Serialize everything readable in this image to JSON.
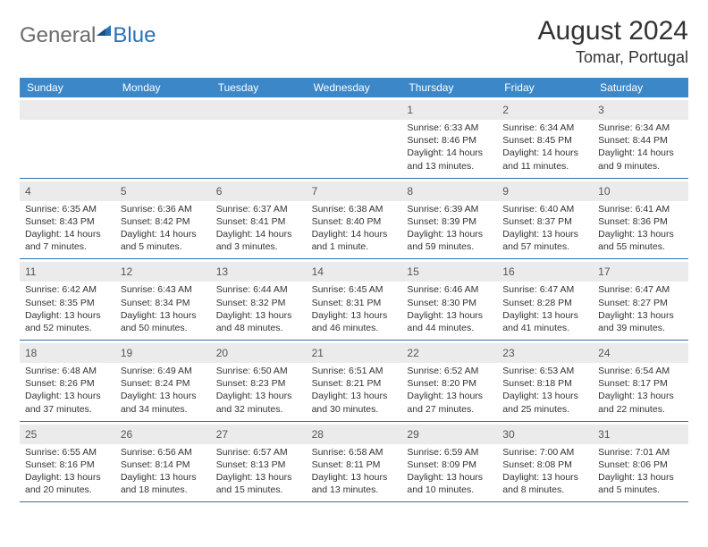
{
  "brand": {
    "part1": "General",
    "part2": "Blue"
  },
  "title": "August 2024",
  "location": "Tomar, Portugal",
  "colors": {
    "header_bg": "#3b87c8",
    "border": "#2a70b8",
    "stripe": "#ebebeb",
    "text": "#333333"
  },
  "dayNames": [
    "Sunday",
    "Monday",
    "Tuesday",
    "Wednesday",
    "Thursday",
    "Friday",
    "Saturday"
  ],
  "weeks": [
    [
      null,
      null,
      null,
      null,
      {
        "n": "1",
        "sr": "6:33 AM",
        "ss": "8:46 PM",
        "dl": "14 hours and 13 minutes."
      },
      {
        "n": "2",
        "sr": "6:34 AM",
        "ss": "8:45 PM",
        "dl": "14 hours and 11 minutes."
      },
      {
        "n": "3",
        "sr": "6:34 AM",
        "ss": "8:44 PM",
        "dl": "14 hours and 9 minutes."
      }
    ],
    [
      {
        "n": "4",
        "sr": "6:35 AM",
        "ss": "8:43 PM",
        "dl": "14 hours and 7 minutes."
      },
      {
        "n": "5",
        "sr": "6:36 AM",
        "ss": "8:42 PM",
        "dl": "14 hours and 5 minutes."
      },
      {
        "n": "6",
        "sr": "6:37 AM",
        "ss": "8:41 PM",
        "dl": "14 hours and 3 minutes."
      },
      {
        "n": "7",
        "sr": "6:38 AM",
        "ss": "8:40 PM",
        "dl": "14 hours and 1 minute."
      },
      {
        "n": "8",
        "sr": "6:39 AM",
        "ss": "8:39 PM",
        "dl": "13 hours and 59 minutes."
      },
      {
        "n": "9",
        "sr": "6:40 AM",
        "ss": "8:37 PM",
        "dl": "13 hours and 57 minutes."
      },
      {
        "n": "10",
        "sr": "6:41 AM",
        "ss": "8:36 PM",
        "dl": "13 hours and 55 minutes."
      }
    ],
    [
      {
        "n": "11",
        "sr": "6:42 AM",
        "ss": "8:35 PM",
        "dl": "13 hours and 52 minutes."
      },
      {
        "n": "12",
        "sr": "6:43 AM",
        "ss": "8:34 PM",
        "dl": "13 hours and 50 minutes."
      },
      {
        "n": "13",
        "sr": "6:44 AM",
        "ss": "8:32 PM",
        "dl": "13 hours and 48 minutes."
      },
      {
        "n": "14",
        "sr": "6:45 AM",
        "ss": "8:31 PM",
        "dl": "13 hours and 46 minutes."
      },
      {
        "n": "15",
        "sr": "6:46 AM",
        "ss": "8:30 PM",
        "dl": "13 hours and 44 minutes."
      },
      {
        "n": "16",
        "sr": "6:47 AM",
        "ss": "8:28 PM",
        "dl": "13 hours and 41 minutes."
      },
      {
        "n": "17",
        "sr": "6:47 AM",
        "ss": "8:27 PM",
        "dl": "13 hours and 39 minutes."
      }
    ],
    [
      {
        "n": "18",
        "sr": "6:48 AM",
        "ss": "8:26 PM",
        "dl": "13 hours and 37 minutes."
      },
      {
        "n": "19",
        "sr": "6:49 AM",
        "ss": "8:24 PM",
        "dl": "13 hours and 34 minutes."
      },
      {
        "n": "20",
        "sr": "6:50 AM",
        "ss": "8:23 PM",
        "dl": "13 hours and 32 minutes."
      },
      {
        "n": "21",
        "sr": "6:51 AM",
        "ss": "8:21 PM",
        "dl": "13 hours and 30 minutes."
      },
      {
        "n": "22",
        "sr": "6:52 AM",
        "ss": "8:20 PM",
        "dl": "13 hours and 27 minutes."
      },
      {
        "n": "23",
        "sr": "6:53 AM",
        "ss": "8:18 PM",
        "dl": "13 hours and 25 minutes."
      },
      {
        "n": "24",
        "sr": "6:54 AM",
        "ss": "8:17 PM",
        "dl": "13 hours and 22 minutes."
      }
    ],
    [
      {
        "n": "25",
        "sr": "6:55 AM",
        "ss": "8:16 PM",
        "dl": "13 hours and 20 minutes."
      },
      {
        "n": "26",
        "sr": "6:56 AM",
        "ss": "8:14 PM",
        "dl": "13 hours and 18 minutes."
      },
      {
        "n": "27",
        "sr": "6:57 AM",
        "ss": "8:13 PM",
        "dl": "13 hours and 15 minutes."
      },
      {
        "n": "28",
        "sr": "6:58 AM",
        "ss": "8:11 PM",
        "dl": "13 hours and 13 minutes."
      },
      {
        "n": "29",
        "sr": "6:59 AM",
        "ss": "8:09 PM",
        "dl": "13 hours and 10 minutes."
      },
      {
        "n": "30",
        "sr": "7:00 AM",
        "ss": "8:08 PM",
        "dl": "13 hours and 8 minutes."
      },
      {
        "n": "31",
        "sr": "7:01 AM",
        "ss": "8:06 PM",
        "dl": "13 hours and 5 minutes."
      }
    ]
  ],
  "labels": {
    "sunrise": "Sunrise: ",
    "sunset": "Sunset: ",
    "daylight": "Daylight: "
  }
}
